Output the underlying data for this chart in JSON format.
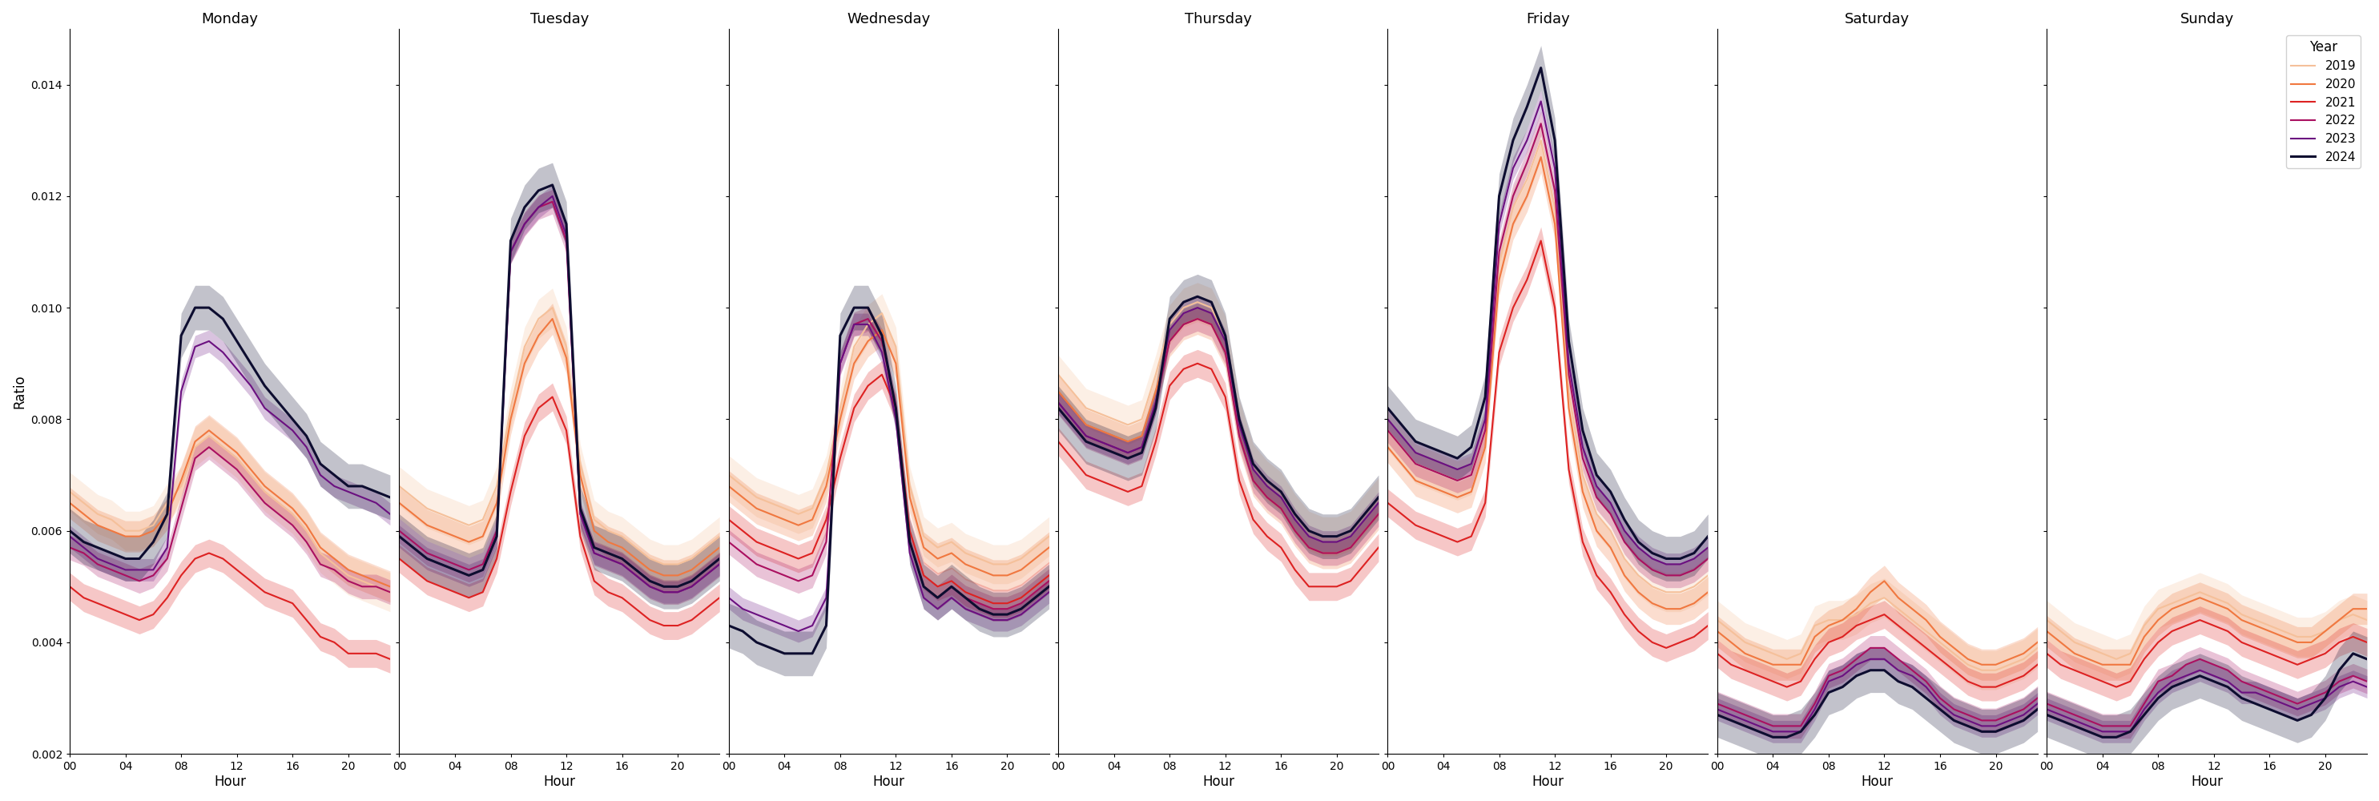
{
  "days": [
    "Monday",
    "Tuesday",
    "Wednesday",
    "Thursday",
    "Friday",
    "Saturday",
    "Sunday"
  ],
  "years": [
    "2019",
    "2020",
    "2021",
    "2022",
    "2023",
    "2024"
  ],
  "colors": {
    "2019": "#f5c09a",
    "2020": "#f07840",
    "2021": "#dd2222",
    "2022": "#aa1060",
    "2023": "#6b1080",
    "2024": "#0d0d30"
  },
  "ylabel": "Ratio",
  "xlabel": "Hour",
  "ylim": [
    0.002,
    0.015
  ],
  "yticks": [
    0.002,
    0.004,
    0.006,
    0.008,
    0.01,
    0.012,
    0.014
  ],
  "xtick_labels": [
    "00",
    "04",
    "08",
    "12",
    "16",
    "20"
  ],
  "legend_title": "Year",
  "hours": [
    0,
    1,
    2,
    3,
    4,
    5,
    6,
    7,
    8,
    9,
    10,
    11,
    12,
    13,
    14,
    15,
    16,
    17,
    18,
    19,
    20,
    21,
    22,
    23
  ],
  "shade_alpha": 0.25,
  "shade_factors": {
    "2019": 0.00035,
    "2020": 0.00028,
    "2021": 0.00025,
    "2022": 0.00022,
    "2023": 0.0002,
    "2024": 0.0004
  },
  "data": {
    "Monday": {
      "2019": [
        0.0067,
        0.0065,
        0.0063,
        0.0062,
        0.006,
        0.006,
        0.0061,
        0.0065,
        0.0068,
        0.0075,
        0.0077,
        0.0075,
        0.0073,
        0.007,
        0.0067,
        0.0065,
        0.0063,
        0.006,
        0.0056,
        0.0054,
        0.0052,
        0.0051,
        0.005,
        0.0049
      ],
      "2020": [
        0.0065,
        0.0063,
        0.0061,
        0.006,
        0.0059,
        0.0059,
        0.006,
        0.0063,
        0.0069,
        0.0076,
        0.0078,
        0.0076,
        0.0074,
        0.0071,
        0.0068,
        0.0066,
        0.0064,
        0.0061,
        0.0057,
        0.0055,
        0.0053,
        0.0052,
        0.0051,
        0.005
      ],
      "2021": [
        0.005,
        0.0048,
        0.0047,
        0.0046,
        0.0045,
        0.0044,
        0.0045,
        0.0048,
        0.0052,
        0.0055,
        0.0056,
        0.0055,
        0.0053,
        0.0051,
        0.0049,
        0.0048,
        0.0047,
        0.0044,
        0.0041,
        0.004,
        0.0038,
        0.0038,
        0.0038,
        0.0037
      ],
      "2022": [
        0.0057,
        0.0056,
        0.0054,
        0.0053,
        0.0052,
        0.0051,
        0.0052,
        0.0055,
        0.0064,
        0.0073,
        0.0075,
        0.0073,
        0.0071,
        0.0068,
        0.0065,
        0.0063,
        0.0061,
        0.0058,
        0.0054,
        0.0053,
        0.0051,
        0.005,
        0.005,
        0.0049
      ],
      "2023": [
        0.0059,
        0.0057,
        0.0055,
        0.0054,
        0.0053,
        0.0053,
        0.0053,
        0.0057,
        0.0085,
        0.0093,
        0.0094,
        0.0092,
        0.0089,
        0.0086,
        0.0082,
        0.008,
        0.0078,
        0.0075,
        0.007,
        0.0068,
        0.0067,
        0.0066,
        0.0065,
        0.0063
      ],
      "2024": [
        0.006,
        0.0058,
        0.0057,
        0.0056,
        0.0055,
        0.0055,
        0.0058,
        0.0063,
        0.0095,
        0.01,
        0.01,
        0.0098,
        0.0094,
        0.009,
        0.0086,
        0.0083,
        0.008,
        0.0077,
        0.0072,
        0.007,
        0.0068,
        0.0068,
        0.0067,
        0.0066
      ]
    },
    "Tuesday": {
      "2019": [
        0.0068,
        0.0066,
        0.0064,
        0.0063,
        0.0062,
        0.0061,
        0.0062,
        0.0068,
        0.0082,
        0.0093,
        0.0098,
        0.01,
        0.0093,
        0.0072,
        0.0062,
        0.006,
        0.0059,
        0.0057,
        0.0055,
        0.0054,
        0.0054,
        0.0055,
        0.0057,
        0.0059
      ],
      "2020": [
        0.0065,
        0.0063,
        0.0061,
        0.006,
        0.0059,
        0.0058,
        0.0059,
        0.0065,
        0.008,
        0.009,
        0.0095,
        0.0098,
        0.0091,
        0.007,
        0.006,
        0.0058,
        0.0057,
        0.0055,
        0.0053,
        0.0052,
        0.0052,
        0.0053,
        0.0055,
        0.0057
      ],
      "2021": [
        0.0055,
        0.0053,
        0.0051,
        0.005,
        0.0049,
        0.0048,
        0.0049,
        0.0055,
        0.0067,
        0.0077,
        0.0082,
        0.0084,
        0.0078,
        0.0059,
        0.0051,
        0.0049,
        0.0048,
        0.0046,
        0.0044,
        0.0043,
        0.0043,
        0.0044,
        0.0046,
        0.0048
      ],
      "2022": [
        0.006,
        0.0058,
        0.0056,
        0.0055,
        0.0054,
        0.0053,
        0.0054,
        0.006,
        0.011,
        0.0115,
        0.0118,
        0.0119,
        0.0112,
        0.0063,
        0.0056,
        0.0055,
        0.0054,
        0.0052,
        0.005,
        0.0049,
        0.0049,
        0.005,
        0.0052,
        0.0054
      ],
      "2023": [
        0.0059,
        0.0057,
        0.0055,
        0.0054,
        0.0053,
        0.0052,
        0.0053,
        0.0059,
        0.011,
        0.0115,
        0.0118,
        0.012,
        0.0113,
        0.0063,
        0.0056,
        0.0055,
        0.0054,
        0.0052,
        0.005,
        0.0049,
        0.0049,
        0.005,
        0.0052,
        0.0054
      ],
      "2024": [
        0.0059,
        0.0057,
        0.0055,
        0.0054,
        0.0053,
        0.0052,
        0.0053,
        0.0059,
        0.0112,
        0.0118,
        0.0121,
        0.0122,
        0.0115,
        0.0064,
        0.0057,
        0.0056,
        0.0055,
        0.0053,
        0.0051,
        0.005,
        0.005,
        0.0051,
        0.0053,
        0.0055
      ]
    },
    "Wednesday": {
      "2019": [
        0.007,
        0.0068,
        0.0066,
        0.0065,
        0.0064,
        0.0063,
        0.0064,
        0.007,
        0.0082,
        0.0093,
        0.0097,
        0.0099,
        0.0093,
        0.0068,
        0.0059,
        0.0057,
        0.0058,
        0.0056,
        0.0055,
        0.0054,
        0.0054,
        0.0055,
        0.0057,
        0.0059
      ],
      "2020": [
        0.0068,
        0.0066,
        0.0064,
        0.0063,
        0.0062,
        0.0061,
        0.0062,
        0.0068,
        0.008,
        0.009,
        0.0094,
        0.0096,
        0.009,
        0.0066,
        0.0057,
        0.0055,
        0.0056,
        0.0054,
        0.0053,
        0.0052,
        0.0052,
        0.0053,
        0.0055,
        0.0057
      ],
      "2021": [
        0.0062,
        0.006,
        0.0058,
        0.0057,
        0.0056,
        0.0055,
        0.0056,
        0.0062,
        0.0073,
        0.0082,
        0.0086,
        0.0088,
        0.0082,
        0.006,
        0.0052,
        0.005,
        0.0051,
        0.0049,
        0.0048,
        0.0047,
        0.0047,
        0.0048,
        0.005,
        0.0052
      ],
      "2022": [
        0.0058,
        0.0056,
        0.0054,
        0.0053,
        0.0052,
        0.0051,
        0.0052,
        0.0058,
        0.009,
        0.0097,
        0.0098,
        0.0094,
        0.0082,
        0.0058,
        0.005,
        0.0048,
        0.005,
        0.0048,
        0.0047,
        0.0046,
        0.0046,
        0.0047,
        0.0049,
        0.0051
      ],
      "2023": [
        0.0048,
        0.0046,
        0.0045,
        0.0044,
        0.0043,
        0.0042,
        0.0043,
        0.0048,
        0.009,
        0.0097,
        0.0097,
        0.0092,
        0.008,
        0.0056,
        0.0048,
        0.0046,
        0.0048,
        0.0046,
        0.0045,
        0.0044,
        0.0044,
        0.0045,
        0.0047,
        0.0049
      ],
      "2024": [
        0.0043,
        0.0042,
        0.004,
        0.0039,
        0.0038,
        0.0038,
        0.0038,
        0.0043,
        0.0095,
        0.01,
        0.01,
        0.0095,
        0.0082,
        0.0058,
        0.005,
        0.0048,
        0.005,
        0.0048,
        0.0046,
        0.0045,
        0.0045,
        0.0046,
        0.0048,
        0.005
      ]
    },
    "Thursday": {
      "2019": [
        0.0088,
        0.0085,
        0.0082,
        0.0081,
        0.008,
        0.0079,
        0.008,
        0.0088,
        0.0097,
        0.01,
        0.0101,
        0.01,
        0.0095,
        0.008,
        0.0072,
        0.0069,
        0.0067,
        0.0063,
        0.006,
        0.0059,
        0.0059,
        0.006,
        0.0063,
        0.0066
      ],
      "2020": [
        0.0085,
        0.0082,
        0.0079,
        0.0078,
        0.0077,
        0.0076,
        0.0077,
        0.0085,
        0.0094,
        0.0097,
        0.0098,
        0.0097,
        0.0092,
        0.0077,
        0.0069,
        0.0066,
        0.0064,
        0.006,
        0.0057,
        0.0056,
        0.0056,
        0.0057,
        0.006,
        0.0063
      ],
      "2021": [
        0.0076,
        0.0073,
        0.007,
        0.0069,
        0.0068,
        0.0067,
        0.0068,
        0.0076,
        0.0086,
        0.0089,
        0.009,
        0.0089,
        0.0084,
        0.0069,
        0.0062,
        0.0059,
        0.0057,
        0.0053,
        0.005,
        0.005,
        0.005,
        0.0051,
        0.0054,
        0.0057
      ],
      "2022": [
        0.0083,
        0.008,
        0.0077,
        0.0076,
        0.0075,
        0.0074,
        0.0075,
        0.0083,
        0.0094,
        0.0097,
        0.0098,
        0.0097,
        0.0092,
        0.0077,
        0.0069,
        0.0066,
        0.0064,
        0.006,
        0.0057,
        0.0056,
        0.0056,
        0.0057,
        0.006,
        0.0063
      ],
      "2023": [
        0.0083,
        0.008,
        0.0077,
        0.0076,
        0.0075,
        0.0074,
        0.0075,
        0.0083,
        0.0096,
        0.0099,
        0.01,
        0.0099,
        0.0094,
        0.0079,
        0.0071,
        0.0068,
        0.0066,
        0.0062,
        0.0059,
        0.0058,
        0.0058,
        0.0059,
        0.0062,
        0.0065
      ],
      "2024": [
        0.0082,
        0.0079,
        0.0076,
        0.0075,
        0.0074,
        0.0073,
        0.0074,
        0.0082,
        0.0098,
        0.0101,
        0.0102,
        0.0101,
        0.0095,
        0.008,
        0.0072,
        0.0069,
        0.0067,
        0.0063,
        0.006,
        0.0059,
        0.0059,
        0.006,
        0.0063,
        0.0066
      ]
    },
    "Friday": {
      "2019": [
        0.0078,
        0.0075,
        0.0072,
        0.0071,
        0.007,
        0.0069,
        0.007,
        0.0078,
        0.0108,
        0.0118,
        0.0123,
        0.013,
        0.0118,
        0.0085,
        0.007,
        0.0063,
        0.006,
        0.0055,
        0.0052,
        0.005,
        0.0049,
        0.0049,
        0.005,
        0.0052
      ],
      "2020": [
        0.0075,
        0.0072,
        0.0069,
        0.0068,
        0.0067,
        0.0066,
        0.0067,
        0.0075,
        0.0105,
        0.0115,
        0.012,
        0.0127,
        0.0115,
        0.0082,
        0.0067,
        0.006,
        0.0057,
        0.0052,
        0.0049,
        0.0047,
        0.0046,
        0.0046,
        0.0047,
        0.0049
      ],
      "2021": [
        0.0065,
        0.0063,
        0.0061,
        0.006,
        0.0059,
        0.0058,
        0.0059,
        0.0065,
        0.0092,
        0.01,
        0.0105,
        0.0112,
        0.01,
        0.0071,
        0.0058,
        0.0052,
        0.0049,
        0.0045,
        0.0042,
        0.004,
        0.0039,
        0.004,
        0.0041,
        0.0043
      ],
      "2022": [
        0.0078,
        0.0075,
        0.0072,
        0.0071,
        0.007,
        0.0069,
        0.007,
        0.0078,
        0.011,
        0.012,
        0.0126,
        0.0133,
        0.0121,
        0.0088,
        0.0073,
        0.0066,
        0.0063,
        0.0058,
        0.0055,
        0.0053,
        0.0052,
        0.0052,
        0.0053,
        0.0055
      ],
      "2023": [
        0.008,
        0.0077,
        0.0074,
        0.0073,
        0.0072,
        0.0071,
        0.0072,
        0.008,
        0.0115,
        0.0125,
        0.013,
        0.0137,
        0.0125,
        0.009,
        0.0075,
        0.0068,
        0.0065,
        0.006,
        0.0057,
        0.0055,
        0.0054,
        0.0054,
        0.0055,
        0.0057
      ],
      "2024": [
        0.0082,
        0.0079,
        0.0076,
        0.0075,
        0.0074,
        0.0073,
        0.0075,
        0.0084,
        0.012,
        0.013,
        0.0136,
        0.0143,
        0.013,
        0.0094,
        0.0078,
        0.007,
        0.0067,
        0.0062,
        0.0058,
        0.0056,
        0.0055,
        0.0055,
        0.0056,
        0.0059
      ]
    },
    "Saturday": {
      "2019": [
        0.0044,
        0.0042,
        0.004,
        0.0039,
        0.0038,
        0.0037,
        0.0038,
        0.0043,
        0.0044,
        0.0044,
        0.0045,
        0.0047,
        0.0048,
        0.0046,
        0.0044,
        0.0042,
        0.004,
        0.0038,
        0.0036,
        0.0035,
        0.0035,
        0.0036,
        0.0037,
        0.0039
      ],
      "2020": [
        0.0042,
        0.004,
        0.0038,
        0.0037,
        0.0036,
        0.0036,
        0.0036,
        0.0041,
        0.0043,
        0.0044,
        0.0046,
        0.0049,
        0.0051,
        0.0048,
        0.0046,
        0.0044,
        0.0041,
        0.0039,
        0.0037,
        0.0036,
        0.0036,
        0.0037,
        0.0038,
        0.004
      ],
      "2021": [
        0.0038,
        0.0036,
        0.0035,
        0.0034,
        0.0033,
        0.0032,
        0.0033,
        0.0037,
        0.004,
        0.0041,
        0.0043,
        0.0044,
        0.0045,
        0.0043,
        0.0041,
        0.0039,
        0.0037,
        0.0035,
        0.0033,
        0.0032,
        0.0032,
        0.0033,
        0.0034,
        0.0036
      ],
      "2022": [
        0.0029,
        0.0028,
        0.0027,
        0.0026,
        0.0025,
        0.0025,
        0.0025,
        0.0029,
        0.0034,
        0.0035,
        0.0037,
        0.0039,
        0.0039,
        0.0037,
        0.0035,
        0.0033,
        0.003,
        0.0028,
        0.0027,
        0.0026,
        0.0026,
        0.0027,
        0.0028,
        0.003
      ],
      "2023": [
        0.0028,
        0.0027,
        0.0026,
        0.0025,
        0.0024,
        0.0024,
        0.0024,
        0.0028,
        0.0033,
        0.0034,
        0.0036,
        0.0037,
        0.0037,
        0.0035,
        0.0034,
        0.0032,
        0.0029,
        0.0027,
        0.0026,
        0.0025,
        0.0025,
        0.0026,
        0.0027,
        0.0029
      ],
      "2024": [
        0.0027,
        0.0026,
        0.0025,
        0.0024,
        0.0023,
        0.0023,
        0.0024,
        0.0027,
        0.0031,
        0.0032,
        0.0034,
        0.0035,
        0.0035,
        0.0033,
        0.0032,
        0.003,
        0.0028,
        0.0026,
        0.0025,
        0.0024,
        0.0024,
        0.0025,
        0.0026,
        0.0028
      ]
    },
    "Sunday": {
      "2019": [
        0.0044,
        0.0042,
        0.004,
        0.0039,
        0.0038,
        0.0037,
        0.0038,
        0.0043,
        0.0046,
        0.0047,
        0.0048,
        0.0049,
        0.0048,
        0.0047,
        0.0045,
        0.0044,
        0.0043,
        0.0042,
        0.0041,
        0.0041,
        0.0042,
        0.0044,
        0.0045,
        0.0044
      ],
      "2020": [
        0.0042,
        0.004,
        0.0038,
        0.0037,
        0.0036,
        0.0036,
        0.0036,
        0.0041,
        0.0044,
        0.0046,
        0.0047,
        0.0048,
        0.0047,
        0.0046,
        0.0044,
        0.0043,
        0.0042,
        0.0041,
        0.004,
        0.004,
        0.0042,
        0.0044,
        0.0046,
        0.0046
      ],
      "2021": [
        0.0038,
        0.0036,
        0.0035,
        0.0034,
        0.0033,
        0.0032,
        0.0033,
        0.0037,
        0.004,
        0.0042,
        0.0043,
        0.0044,
        0.0043,
        0.0042,
        0.004,
        0.0039,
        0.0038,
        0.0037,
        0.0036,
        0.0037,
        0.0038,
        0.004,
        0.0041,
        0.004
      ],
      "2022": [
        0.0029,
        0.0028,
        0.0027,
        0.0026,
        0.0025,
        0.0025,
        0.0025,
        0.0029,
        0.0033,
        0.0034,
        0.0036,
        0.0037,
        0.0036,
        0.0035,
        0.0033,
        0.0032,
        0.0031,
        0.003,
        0.0029,
        0.003,
        0.0031,
        0.0033,
        0.0034,
        0.0033
      ],
      "2023": [
        0.0028,
        0.0027,
        0.0026,
        0.0025,
        0.0024,
        0.0024,
        0.0024,
        0.0028,
        0.0031,
        0.0033,
        0.0034,
        0.0035,
        0.0034,
        0.0033,
        0.0031,
        0.0031,
        0.003,
        0.0029,
        0.0028,
        0.0029,
        0.003,
        0.0032,
        0.0033,
        0.0032
      ],
      "2024": [
        0.0027,
        0.0026,
        0.0025,
        0.0024,
        0.0023,
        0.0023,
        0.0024,
        0.0027,
        0.003,
        0.0032,
        0.0033,
        0.0034,
        0.0033,
        0.0032,
        0.003,
        0.0029,
        0.0028,
        0.0027,
        0.0026,
        0.0027,
        0.003,
        0.0035,
        0.0038,
        0.0037
      ]
    }
  }
}
